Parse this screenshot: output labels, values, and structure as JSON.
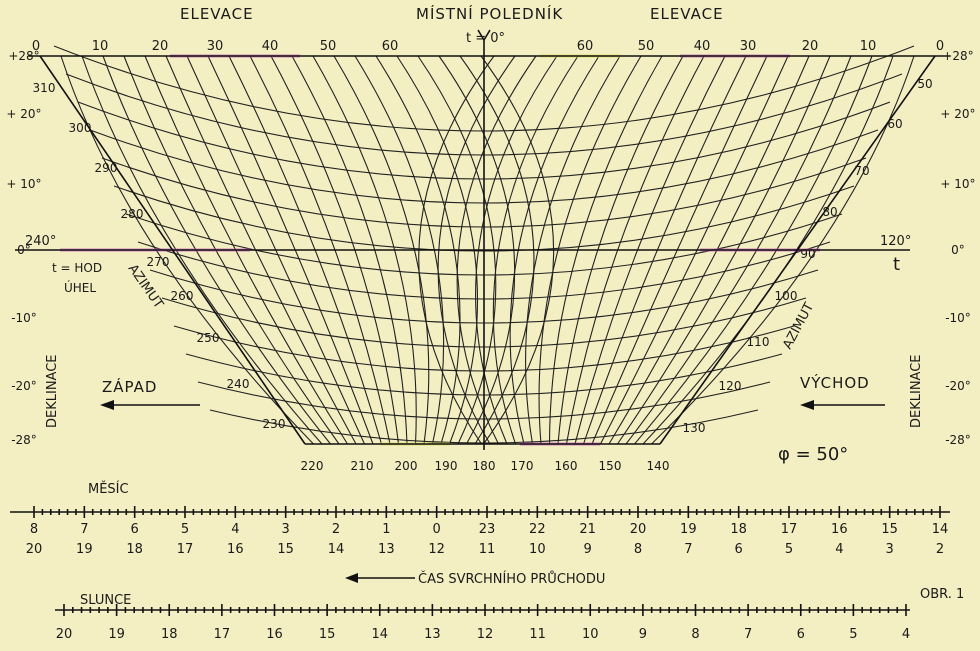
{
  "headings": {
    "elevation_left": "ELEVACE",
    "meridian": "MÍSTNÍ POLEDNÍK",
    "meridian_t": "t = 0°",
    "elevation_right": "ELEVACE",
    "hour_angle_left": "240°",
    "hour_angle_right": "120°",
    "t_letter": "t",
    "t_hour_angle_1": "t = HOD",
    "t_hour_angle_2": "ÚHEL",
    "azimuth_left": "AZIMUT",
    "azimuth_right": "AZIMUT",
    "declination_left": "DEKLINACE",
    "declination_right": "DEKLINACE",
    "west": "ZÁPAD",
    "east": "VÝCHOD",
    "latitude": "φ = 50°",
    "moon": "MĚSÍC",
    "transit": "ČAS SVRCHNÍHO PRŮCHODU",
    "sun": "SLUNCE",
    "figure": "OBR. 1"
  },
  "elevation_top_left": [
    "0",
    "10",
    "20",
    "30",
    "40",
    "50",
    "60"
  ],
  "elevation_top_right": [
    "60",
    "50",
    "40",
    "30",
    "20",
    "10",
    "0"
  ],
  "azimuth_left": [
    "310",
    "300",
    "290",
    "280",
    "270",
    "260",
    "250",
    "240",
    "230"
  ],
  "azimuth_right": [
    "50",
    "60",
    "70",
    "80",
    "90",
    "100",
    "110",
    "120",
    "130"
  ],
  "azimuth_bottom": [
    "220",
    "210",
    "200",
    "190",
    "180",
    "170",
    "160",
    "150",
    "140"
  ],
  "declination_left": [
    "+28°",
    "+ 20°",
    "+ 10°",
    "0°",
    "-10°",
    "-20°",
    "-28°"
  ],
  "declination_right": [
    "+28°",
    "+ 20°",
    "+ 10°",
    "0°",
    "-10°",
    "-20°",
    "-28°"
  ],
  "moon_row_1": [
    "8",
    "7",
    "6",
    "5",
    "4",
    "3",
    "2",
    "1",
    "0",
    "23",
    "22",
    "21",
    "20",
    "19",
    "18",
    "17",
    "16",
    "15",
    "14"
  ],
  "moon_row_2": [
    "20",
    "19",
    "18",
    "17",
    "16",
    "15",
    "14",
    "13",
    "12",
    "11",
    "10",
    "9",
    "8",
    "7",
    "6",
    "5",
    "4",
    "3",
    "2"
  ],
  "sun_row": [
    "20",
    "19",
    "18",
    "17",
    "16",
    "15",
    "14",
    "13",
    "12",
    "11",
    "10",
    "9",
    "8",
    "7",
    "6",
    "5",
    "4"
  ],
  "colors": {
    "paper": "#f4efc2",
    "ink": "#1a1a1a",
    "pink": "#c35ab5",
    "yellow": "#d9d95a"
  }
}
